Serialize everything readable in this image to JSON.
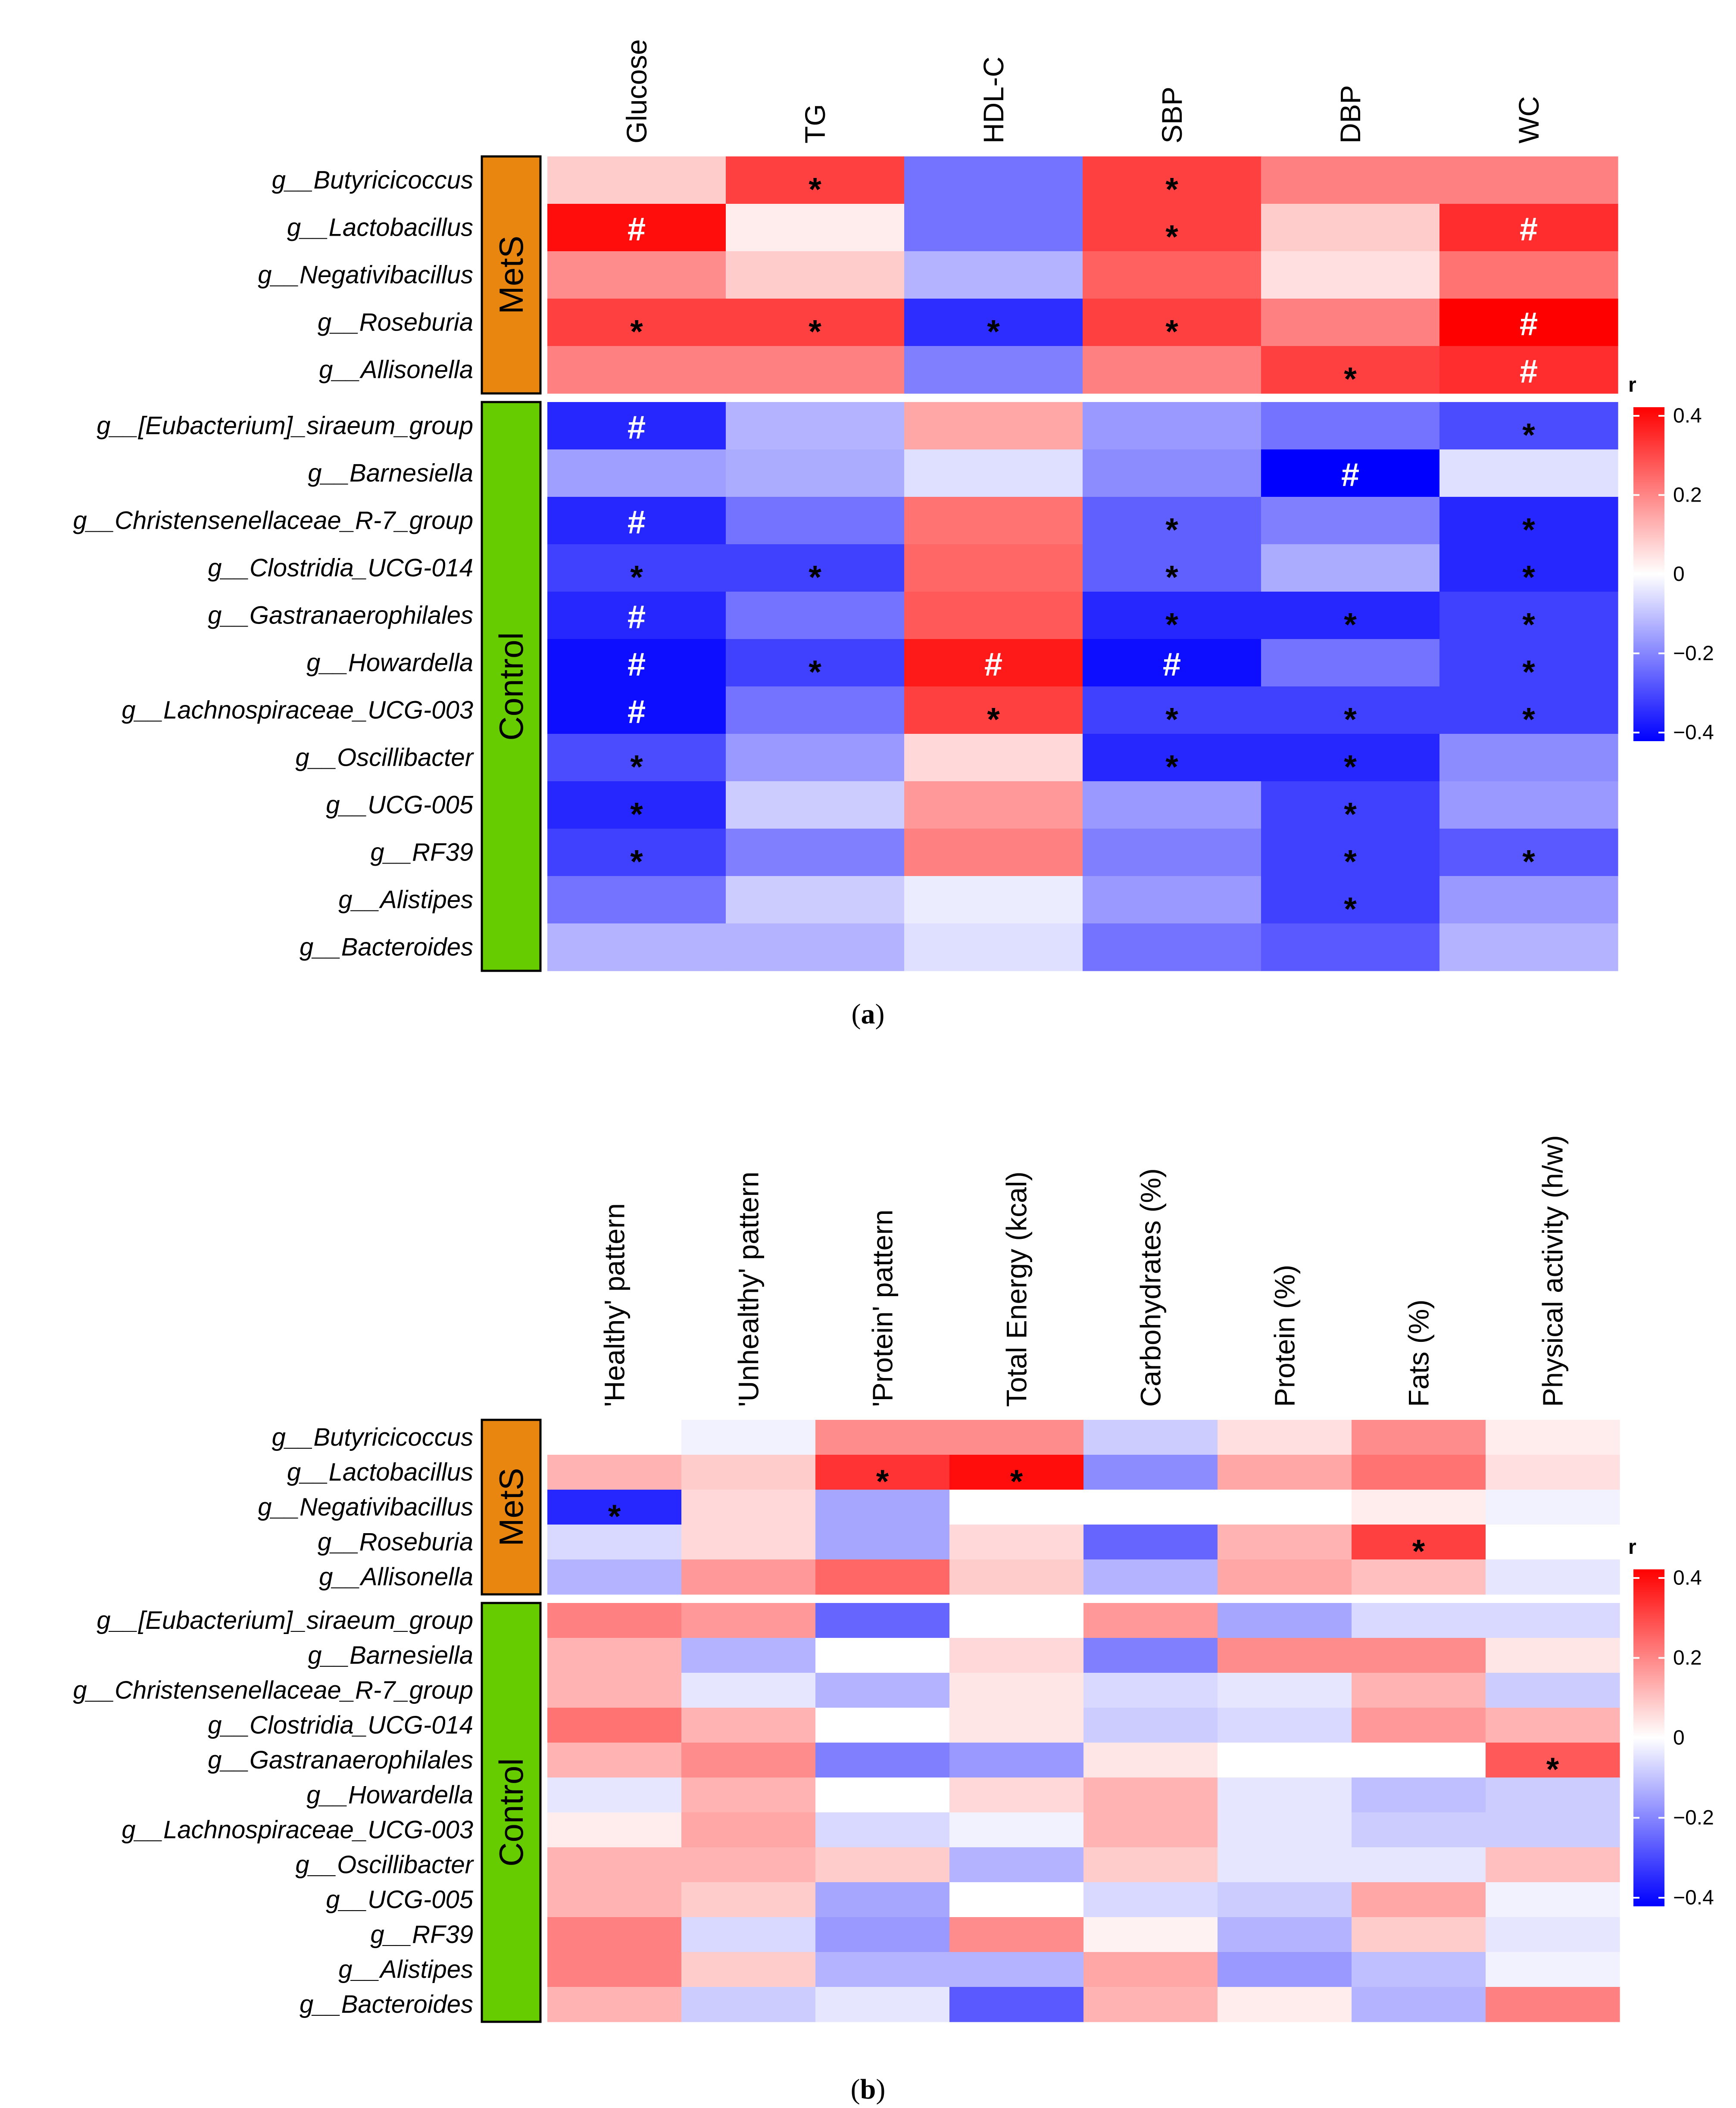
{
  "colors": {
    "negative": "#0000ff",
    "neutral": "#ffffff",
    "positive": "#ff0000",
    "metS": "#e8860f",
    "control": "#66cc00"
  },
  "chart_data": [
    {
      "type": "heatmap",
      "panel": "(a)",
      "caption_letter": "a",
      "columns": [
        "Glucose",
        "TG",
        "HDL-C",
        "SBP",
        "DBP",
        "WC"
      ],
      "groups": [
        {
          "name": "MetS",
          "rows": [
            "g__Butyricicoccus",
            "g__Lactobacillus",
            "g__Negativibacillus",
            "g__Roseburia",
            "g__Allisonella"
          ]
        },
        {
          "name": "Control",
          "rows": [
            "g__[Eubacterium]_siraeum_group",
            "g__Barnesiella",
            "g__Christensenellaceae_R-7_group",
            "g__Clostridia_UCG-014",
            "g__Gastranaerophilales",
            "g__Howardella",
            "g__Lachnospiraceae_UCG-003",
            "g__Oscillibacter",
            "g__UCG-005",
            "g__RF39",
            "g__Alistipes",
            "g__Bacteroides"
          ]
        }
      ],
      "values": [
        [
          0.08,
          0.3,
          -0.22,
          0.3,
          0.2,
          0.2
        ],
        [
          0.38,
          0.03,
          -0.22,
          0.3,
          0.08,
          0.33
        ],
        [
          0.18,
          0.08,
          -0.12,
          0.25,
          0.05,
          0.22
        ],
        [
          0.3,
          0.3,
          -0.33,
          0.3,
          0.2,
          0.4
        ],
        [
          0.2,
          0.2,
          -0.2,
          0.2,
          0.3,
          0.33
        ],
        [
          -0.34,
          -0.12,
          0.14,
          -0.16,
          -0.22,
          -0.28
        ],
        [
          -0.15,
          -0.13,
          -0.05,
          -0.18,
          -0.4,
          -0.05
        ],
        [
          -0.34,
          -0.22,
          0.22,
          -0.25,
          -0.2,
          -0.34
        ],
        [
          -0.3,
          -0.3,
          0.24,
          -0.25,
          -0.13,
          -0.34
        ],
        [
          -0.34,
          -0.22,
          0.26,
          -0.34,
          -0.34,
          -0.3
        ],
        [
          -0.38,
          -0.3,
          0.36,
          -0.38,
          -0.22,
          -0.3
        ],
        [
          -0.38,
          -0.22,
          0.3,
          -0.3,
          -0.3,
          -0.3
        ],
        [
          -0.28,
          -0.16,
          0.06,
          -0.34,
          -0.34,
          -0.18
        ],
        [
          -0.34,
          -0.08,
          0.16,
          -0.16,
          -0.3,
          -0.16
        ],
        [
          -0.3,
          -0.2,
          0.2,
          -0.2,
          -0.3,
          -0.26
        ],
        [
          -0.22,
          -0.08,
          -0.03,
          -0.16,
          -0.3,
          -0.16
        ],
        [
          -0.12,
          -0.12,
          -0.05,
          -0.22,
          -0.26,
          -0.12
        ]
      ],
      "marks": [
        [
          "",
          "*",
          "",
          "*",
          "",
          ""
        ],
        [
          "#",
          "",
          "",
          "*",
          "",
          "#"
        ],
        [
          "",
          "",
          "",
          "",
          "",
          ""
        ],
        [
          "*",
          "*",
          "*",
          "*",
          "",
          "#"
        ],
        [
          "",
          "",
          "",
          "",
          "*",
          "#"
        ],
        [
          "#",
          "",
          "",
          "",
          "",
          "*"
        ],
        [
          "",
          "",
          "",
          "",
          "#",
          ""
        ],
        [
          "#",
          "",
          "",
          "*",
          "",
          "*"
        ],
        [
          "*",
          "*",
          "",
          "*",
          "",
          "*"
        ],
        [
          "#",
          "",
          "",
          "*",
          "*",
          "*"
        ],
        [
          "#",
          "*",
          "#",
          "#",
          "",
          "*"
        ],
        [
          "#",
          "",
          "*",
          "*",
          "*",
          "*"
        ],
        [
          "*",
          "",
          "",
          "*",
          "*",
          ""
        ],
        [
          "*",
          "",
          "",
          "",
          "*",
          ""
        ],
        [
          "*",
          "",
          "",
          "",
          "*",
          "*"
        ],
        [
          "",
          "",
          "",
          "",
          "*",
          ""
        ],
        [
          "",
          "",
          "",
          "",
          "",
          ""
        ]
      ],
      "legend": {
        "title": "r",
        "range": [
          -0.4,
          0.4
        ],
        "ticks": [
          0.4,
          0.2,
          0,
          -0.2,
          -0.4
        ],
        "tick_labels": [
          "0.4",
          "0.2",
          "0",
          "−0.2",
          "−0.4"
        ]
      }
    },
    {
      "type": "heatmap",
      "panel": "(b)",
      "caption_letter": "b",
      "columns": [
        "'Healthy' pattern",
        "'Unhealthy' pattern",
        "'Protein' pattern",
        "Total Energy (kcal)",
        "Carbohydrates (%)",
        "Protein (%)",
        "Fats (%)",
        "Physical activity (h/w)"
      ],
      "groups": [
        {
          "name": "MetS",
          "rows": [
            "g__Butyricicoccus",
            "g__Lactobacillus",
            "g__Negativibacillus",
            "g__Roseburia",
            "g__Allisonella"
          ]
        },
        {
          "name": "Control",
          "rows": [
            "g__[Eubacterium]_siraeum_group",
            "g__Barnesiella",
            "g__Christensenellaceae_R-7_group",
            "g__Clostridia_UCG-014",
            "g__Gastranaerophilales",
            "g__Howardella",
            "g__Lachnospiraceae_UCG-003",
            "g__Oscillibacter",
            "g__UCG-005",
            "g__RF39",
            "g__Alistipes",
            "g__Bacteroides"
          ]
        }
      ],
      "values": [
        [
          0.0,
          -0.02,
          0.18,
          0.18,
          -0.08,
          0.05,
          0.18,
          0.03
        ],
        [
          0.12,
          0.08,
          0.32,
          0.38,
          -0.18,
          0.14,
          0.22,
          0.05
        ],
        [
          -0.34,
          0.06,
          -0.14,
          0.0,
          0.0,
          0.0,
          0.03,
          -0.02
        ],
        [
          -0.06,
          0.06,
          -0.14,
          0.06,
          -0.24,
          0.12,
          0.3,
          0.0
        ],
        [
          -0.12,
          0.16,
          0.24,
          0.08,
          -0.12,
          0.14,
          0.1,
          -0.04
        ],
        [
          0.2,
          0.16,
          -0.24,
          0.0,
          0.16,
          -0.14,
          -0.06,
          -0.06
        ],
        [
          0.12,
          -0.12,
          0.0,
          0.06,
          -0.2,
          0.18,
          0.18,
          0.04
        ],
        [
          0.12,
          -0.04,
          -0.12,
          0.04,
          -0.06,
          -0.04,
          0.12,
          -0.08
        ],
        [
          0.22,
          0.12,
          0.0,
          0.04,
          -0.08,
          -0.06,
          0.16,
          0.12
        ],
        [
          0.12,
          0.18,
          -0.2,
          -0.16,
          0.04,
          0.0,
          0.0,
          0.26
        ],
        [
          -0.04,
          0.12,
          0.0,
          0.06,
          0.12,
          -0.04,
          -0.1,
          -0.08
        ],
        [
          0.03,
          0.14,
          -0.06,
          -0.02,
          0.12,
          -0.04,
          -0.08,
          -0.08
        ],
        [
          0.12,
          0.12,
          0.08,
          -0.12,
          0.08,
          -0.04,
          -0.04,
          0.1
        ],
        [
          0.12,
          0.08,
          -0.14,
          0.0,
          -0.06,
          -0.08,
          0.14,
          -0.02
        ],
        [
          0.2,
          -0.06,
          -0.16,
          0.18,
          0.02,
          -0.12,
          0.08,
          -0.04
        ],
        [
          0.2,
          0.08,
          -0.12,
          -0.12,
          0.14,
          -0.16,
          -0.1,
          -0.02
        ],
        [
          0.12,
          -0.08,
          -0.04,
          -0.26,
          0.12,
          0.03,
          -0.12,
          0.2
        ]
      ],
      "marks": [
        [
          "",
          "",
          "",
          "",
          "",
          "",
          "",
          ""
        ],
        [
          "",
          "",
          "*",
          "*",
          "",
          "",
          "",
          ""
        ],
        [
          "*",
          "",
          "",
          "",
          "",
          "",
          "",
          ""
        ],
        [
          "",
          "",
          "",
          "",
          "",
          "",
          "*",
          ""
        ],
        [
          "",
          "",
          "",
          "",
          "",
          "",
          "",
          ""
        ],
        [
          "",
          "",
          "",
          "",
          "",
          "",
          "",
          ""
        ],
        [
          "",
          "",
          "",
          "",
          "",
          "",
          "",
          ""
        ],
        [
          "",
          "",
          "",
          "",
          "",
          "",
          "",
          ""
        ],
        [
          "",
          "",
          "",
          "",
          "",
          "",
          "",
          ""
        ],
        [
          "",
          "",
          "",
          "",
          "",
          "",
          "",
          "*"
        ],
        [
          "",
          "",
          "",
          "",
          "",
          "",
          "",
          ""
        ],
        [
          "",
          "",
          "",
          "",
          "",
          "",
          "",
          ""
        ],
        [
          "",
          "",
          "",
          "",
          "",
          "",
          "",
          ""
        ],
        [
          "",
          "",
          "",
          "",
          "",
          "",
          "",
          ""
        ],
        [
          "",
          "",
          "",
          "",
          "",
          "",
          "",
          ""
        ],
        [
          "",
          "",
          "",
          "",
          "",
          "",
          "",
          ""
        ],
        [
          "",
          "",
          "",
          "",
          "",
          "",
          "",
          ""
        ]
      ],
      "legend": {
        "title": "r",
        "range": [
          -0.4,
          0.4
        ],
        "ticks": [
          0.4,
          0.2,
          0,
          -0.2,
          -0.4
        ],
        "tick_labels": [
          "0.4",
          "0.2",
          "0",
          "−0.2",
          "−0.4"
        ]
      }
    }
  ]
}
